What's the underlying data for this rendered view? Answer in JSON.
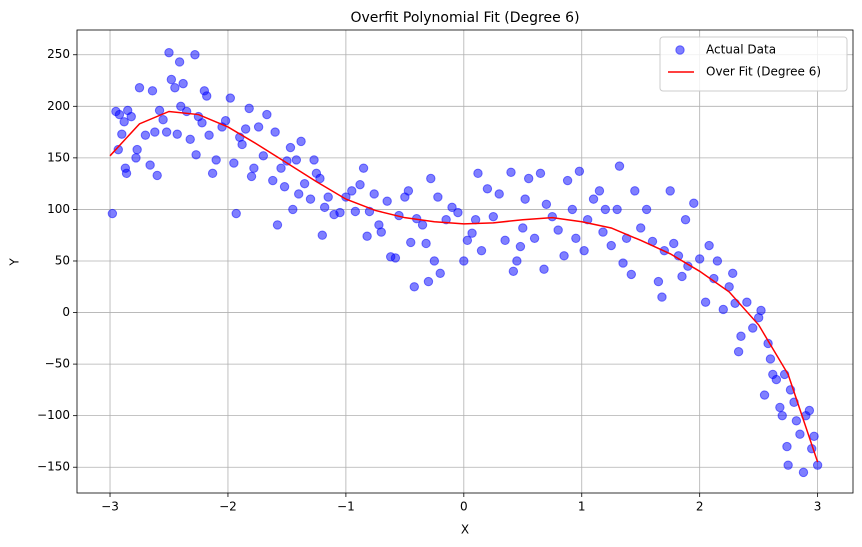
{
  "chart_data": {
    "type": "scatter",
    "title": "Overfit Polynomial Fit (Degree 6)",
    "x_label": "X",
    "y_label": "Y",
    "xlim": [
      -3.28,
      3.3
    ],
    "ylim": [
      -175,
      274
    ],
    "xticks": [
      {
        "value": -3,
        "label": "−3"
      },
      {
        "value": -2,
        "label": "−2"
      },
      {
        "value": -1,
        "label": "−1"
      },
      0,
      1,
      2,
      3
    ],
    "yticks": [
      {
        "value": -150,
        "label": "−150"
      },
      {
        "value": -100,
        "label": "−100"
      },
      {
        "value": -50,
        "label": "−50"
      },
      0,
      50,
      100,
      150,
      200,
      250
    ],
    "grid": true,
    "legend": "upper right",
    "series": [
      {
        "name": "Actual Data",
        "type": "scatter",
        "color": "blue",
        "x": [
          -2.98,
          -2.95,
          -2.93,
          -2.92,
          -2.9,
          -2.88,
          -2.87,
          -2.86,
          -2.85,
          -2.82,
          -2.78,
          -2.77,
          -2.75,
          -2.7,
          -2.66,
          -2.64,
          -2.62,
          -2.6,
          -2.58,
          -2.55,
          -2.52,
          -2.5,
          -2.48,
          -2.45,
          -2.43,
          -2.41,
          -2.4,
          -2.38,
          -2.35,
          -2.32,
          -2.28,
          -2.27,
          -2.25,
          -2.22,
          -2.2,
          -2.18,
          -2.16,
          -2.13,
          -2.1,
          -2.05,
          -2.02,
          -1.98,
          -1.95,
          -1.93,
          -1.9,
          -1.88,
          -1.85,
          -1.82,
          -1.8,
          -1.78,
          -1.74,
          -1.7,
          -1.67,
          -1.62,
          -1.6,
          -1.58,
          -1.55,
          -1.52,
          -1.5,
          -1.47,
          -1.45,
          -1.42,
          -1.4,
          -1.38,
          -1.35,
          -1.3,
          -1.27,
          -1.25,
          -1.22,
          -1.2,
          -1.18,
          -1.15,
          -1.1,
          -1.05,
          -1.0,
          -0.95,
          -0.92,
          -0.88,
          -0.85,
          -0.82,
          -0.8,
          -0.76,
          -0.72,
          -0.7,
          -0.65,
          -0.62,
          -0.58,
          -0.55,
          -0.5,
          -0.47,
          -0.45,
          -0.42,
          -0.4,
          -0.35,
          -0.32,
          -0.3,
          -0.28,
          -0.25,
          -0.22,
          -0.2,
          -0.15,
          -0.1,
          -0.05,
          0.0,
          0.03,
          0.07,
          0.1,
          0.12,
          0.15,
          0.2,
          0.25,
          0.3,
          0.35,
          0.4,
          0.42,
          0.45,
          0.48,
          0.5,
          0.52,
          0.55,
          0.6,
          0.65,
          0.68,
          0.7,
          0.75,
          0.8,
          0.85,
          0.88,
          0.92,
          0.95,
          0.98,
          1.02,
          1.05,
          1.1,
          1.15,
          1.18,
          1.2,
          1.25,
          1.3,
          1.32,
          1.35,
          1.38,
          1.42,
          1.45,
          1.5,
          1.55,
          1.6,
          1.65,
          1.68,
          1.7,
          1.75,
          1.78,
          1.82,
          1.85,
          1.88,
          1.9,
          1.95,
          2.0,
          2.05,
          2.08,
          2.12,
          2.15,
          2.2,
          2.25,
          2.28,
          2.3,
          2.33,
          2.35,
          2.4,
          2.45,
          2.5,
          2.52,
          2.55,
          2.58,
          2.6,
          2.62,
          2.65,
          2.68,
          2.7,
          2.72,
          2.74,
          2.75,
          2.77,
          2.8,
          2.82,
          2.85,
          2.88,
          2.9,
          2.93,
          2.95,
          2.97,
          3.0
        ],
        "values": [
          96,
          195,
          158,
          192,
          173,
          185,
          140,
          135,
          196,
          190,
          150,
          158,
          218,
          172,
          143,
          215,
          175,
          133,
          196,
          187,
          175,
          252,
          226,
          218,
          173,
          243,
          200,
          222,
          195,
          168,
          250,
          153,
          190,
          184,
          215,
          210,
          172,
          135,
          148,
          180,
          186,
          208,
          145,
          96,
          170,
          163,
          178,
          198,
          132,
          140,
          180,
          152,
          192,
          128,
          175,
          85,
          140,
          122,
          147,
          160,
          100,
          148,
          115,
          166,
          125,
          110,
          148,
          135,
          130,
          75,
          102,
          112,
          95,
          97,
          112,
          118,
          98,
          124,
          140,
          74,
          98,
          115,
          85,
          78,
          108,
          54,
          53,
          94,
          112,
          118,
          68,
          25,
          91,
          85,
          67,
          30,
          130,
          50,
          112,
          38,
          90,
          102,
          97,
          50,
          70,
          77,
          90,
          135,
          60,
          120,
          93,
          115,
          70,
          136,
          40,
          50,
          64,
          82,
          110,
          130,
          72,
          135,
          42,
          105,
          93,
          80,
          55,
          128,
          100,
          72,
          137,
          60,
          90,
          110,
          118,
          78,
          100,
          65,
          100,
          142,
          48,
          72,
          37,
          118,
          82,
          100,
          69,
          30,
          15,
          60,
          118,
          67,
          55,
          35,
          90,
          45,
          106,
          52,
          10,
          65,
          33,
          50,
          3,
          25,
          38,
          9,
          -38,
          -23,
          10,
          -15,
          -5,
          2,
          -80,
          -30,
          -45,
          -60,
          -65,
          -92,
          -100,
          -60,
          -130,
          -148,
          -75,
          -87,
          -105,
          -118,
          -155,
          -100,
          -95,
          -132,
          -120,
          -148
        ]
      },
      {
        "name": "Over Fit (Degree 6)",
        "type": "line",
        "color": "red",
        "x": [
          -3,
          -2.75,
          -2.5,
          -2.25,
          -2,
          -1.75,
          -1.5,
          -1.25,
          -1,
          -0.75,
          -0.5,
          -0.25,
          0,
          0.25,
          0.5,
          0.75,
          1,
          1.25,
          1.5,
          1.75,
          2,
          2.25,
          2.5,
          2.75,
          3
        ],
        "values": [
          152,
          183,
          195,
          192,
          180,
          163,
          145,
          127,
          110,
          99,
          92,
          88,
          86,
          87,
          90,
          92,
          88,
          82,
          70,
          57,
          40,
          20,
          -12,
          -60,
          -145
        ]
      }
    ]
  }
}
